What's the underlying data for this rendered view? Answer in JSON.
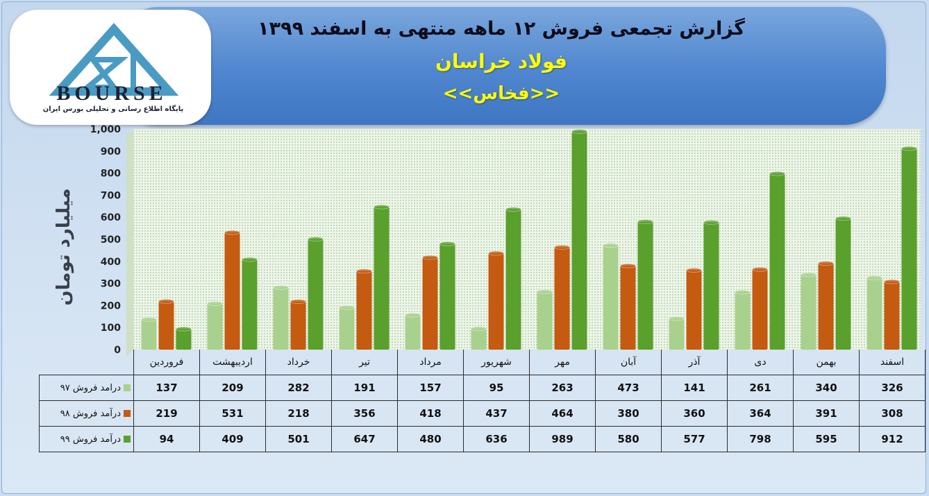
{
  "header": {
    "title": "گزارش تجمعی فروش ۱۲ ماهه منتهی به اسفند ۱۳۹۹",
    "company": "فولاد خراسان",
    "symbol": "<<فخاس>>"
  },
  "logo": {
    "text": "BOURSE",
    "subtitle": "پایگاه اطلاع رسانی و تحلیلی بورس ایران"
  },
  "colors": {
    "series_97": "#a9d18e",
    "series_98": "#c55a11",
    "series_99": "#5aa02c",
    "banner": "#4f86cf",
    "title_yellow": "#ffff00"
  },
  "chart_data": {
    "type": "bar",
    "title": "گزارش تجمعی فروش ۱۲ ماهه منتهی به اسفند ۱۳۹۹",
    "ylabel": "میلیارد تومان",
    "xlabel": "",
    "ylim": [
      0,
      1000
    ],
    "yticks": [
      "0",
      "100",
      "200",
      "300",
      "400",
      "500",
      "600",
      "700",
      "800",
      "900",
      "1,000"
    ],
    "grid": true,
    "categories": [
      "فروردین",
      "اردیبهشت",
      "خرداد",
      "تیر",
      "مرداد",
      "شهریور",
      "مهر",
      "آبان",
      "آذر",
      "دی",
      "بهمن",
      "اسفند"
    ],
    "series": [
      {
        "name": "درامد فروش ۹۷",
        "values": [
          137,
          209,
          282,
          191,
          157,
          95,
          263,
          473,
          141,
          261,
          340,
          326
        ]
      },
      {
        "name": "درآمد فروش ۹۸",
        "values": [
          219,
          531,
          218,
          356,
          418,
          437,
          464,
          380,
          360,
          364,
          391,
          308
        ]
      },
      {
        "name": "درآمد فروش ۹۹",
        "values": [
          94,
          409,
          501,
          647,
          480,
          636,
          989,
          580,
          577,
          798,
          595,
          912
        ]
      }
    ]
  }
}
